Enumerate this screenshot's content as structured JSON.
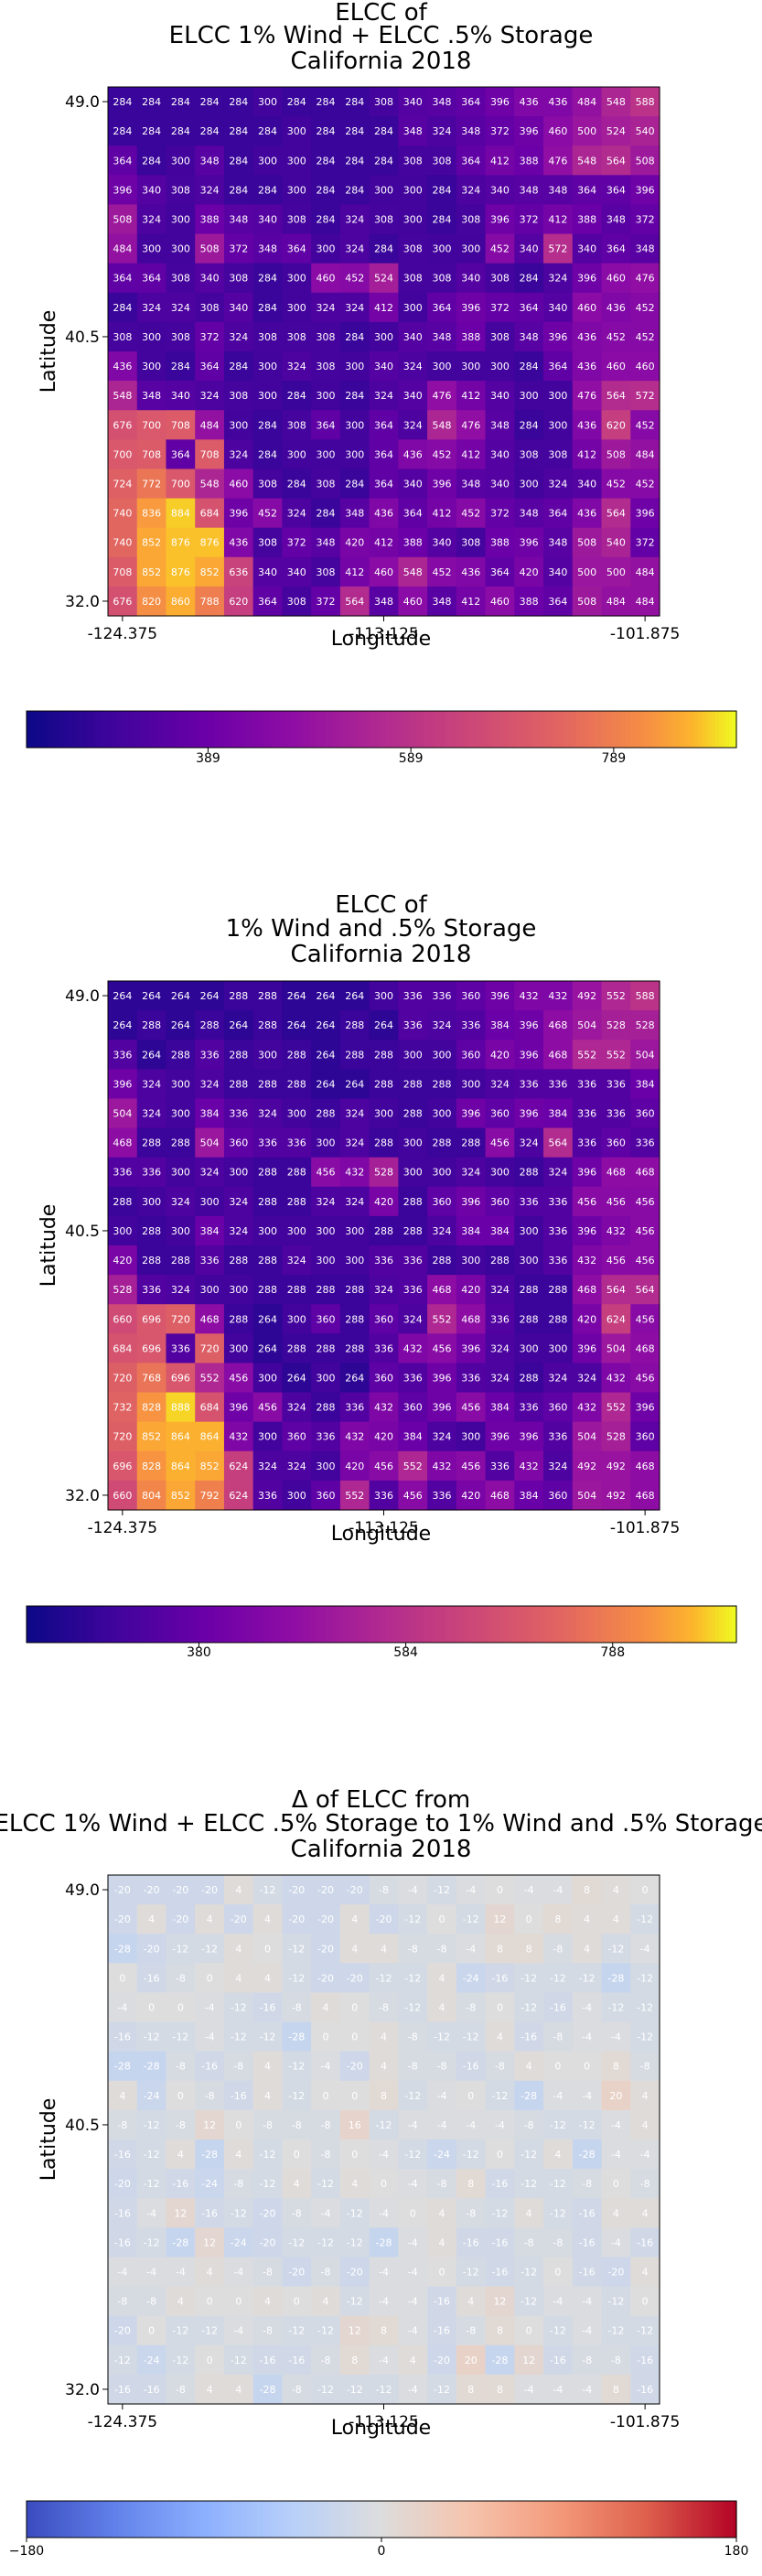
{
  "chart_data": [
    {
      "type": "heatmap",
      "title": [
        "ELCC of",
        "ELCC 1% Wind + ELCC .5% Storage",
        "California 2018"
      ],
      "xlabel": "Longitude",
      "ylabel": "Latitude",
      "xticks": [
        "-124.375",
        "-113.125",
        "-101.875"
      ],
      "yticks": [
        "49.0",
        "40.5",
        "32.0"
      ],
      "colormap": "plasma",
      "colorbar_ticks": [
        "389",
        "589",
        "789"
      ],
      "colorbar_range": [
        210,
        910
      ],
      "grid": [
        [
          284,
          284,
          284,
          284,
          284,
          300,
          284,
          284,
          284,
          308,
          340,
          348,
          364,
          396,
          436,
          436,
          484,
          548,
          588
        ],
        [
          284,
          284,
          284,
          284,
          284,
          284,
          300,
          284,
          284,
          284,
          348,
          324,
          348,
          372,
          396,
          460,
          500,
          524,
          540
        ],
        [
          364,
          284,
          300,
          348,
          284,
          300,
          300,
          284,
          284,
          284,
          308,
          308,
          364,
          412,
          388,
          476,
          548,
          564,
          508
        ],
        [
          396,
          340,
          308,
          324,
          284,
          284,
          300,
          284,
          284,
          300,
          300,
          284,
          324,
          340,
          348,
          348,
          364,
          364,
          396
        ],
        [
          508,
          324,
          300,
          388,
          348,
          340,
          308,
          284,
          324,
          308,
          300,
          284,
          308,
          396,
          372,
          412,
          388,
          348,
          372
        ],
        [
          484,
          300,
          300,
          508,
          372,
          348,
          364,
          300,
          324,
          284,
          308,
          300,
          300,
          452,
          340,
          572,
          340,
          364,
          348
        ],
        [
          364,
          364,
          308,
          340,
          308,
          284,
          300,
          460,
          452,
          524,
          308,
          308,
          340,
          308,
          284,
          324,
          396,
          460,
          476
        ],
        [
          284,
          324,
          324,
          308,
          340,
          284,
          300,
          324,
          324,
          412,
          300,
          364,
          396,
          372,
          364,
          340,
          460,
          436,
          452
        ],
        [
          308,
          300,
          308,
          372,
          324,
          308,
          308,
          308,
          284,
          300,
          340,
          348,
          388,
          308,
          348,
          396,
          436,
          452,
          452
        ],
        [
          436,
          300,
          284,
          364,
          284,
          300,
          324,
          308,
          300,
          340,
          324,
          300,
          300,
          300,
          284,
          364,
          436,
          460,
          460
        ],
        [
          548,
          348,
          340,
          324,
          308,
          300,
          284,
          300,
          284,
          324,
          340,
          476,
          412,
          340,
          300,
          300,
          476,
          564,
          572
        ],
        [
          676,
          700,
          708,
          484,
          300,
          284,
          308,
          364,
          300,
          364,
          324,
          548,
          476,
          348,
          284,
          300,
          436,
          620,
          452
        ],
        [
          700,
          708,
          364,
          708,
          324,
          284,
          300,
          300,
          300,
          364,
          436,
          452,
          412,
          340,
          308,
          308,
          412,
          508,
          484
        ],
        [
          724,
          772,
          700,
          548,
          460,
          308,
          284,
          308,
          284,
          364,
          340,
          396,
          348,
          340,
          300,
          324,
          340,
          452,
          452
        ],
        [
          740,
          836,
          884,
          684,
          396,
          452,
          324,
          284,
          348,
          436,
          364,
          412,
          452,
          372,
          348,
          364,
          436,
          564,
          396
        ],
        [
          740,
          852,
          876,
          876,
          436,
          308,
          372,
          348,
          420,
          412,
          388,
          340,
          308,
          388,
          396,
          348,
          508,
          540,
          372
        ],
        [
          708,
          852,
          876,
          852,
          636,
          340,
          340,
          308,
          412,
          460,
          548,
          452,
          436,
          364,
          420,
          340,
          500,
          500,
          484
        ],
        [
          676,
          820,
          860,
          788,
          620,
          364,
          308,
          372,
          564,
          348,
          460,
          348,
          412,
          460,
          388,
          364,
          508,
          484,
          484
        ]
      ]
    },
    {
      "type": "heatmap",
      "title": [
        "ELCC of",
        "1% Wind and .5% Storage",
        "California 2018"
      ],
      "xlabel": "Longitude",
      "ylabel": "Latitude",
      "xticks": [
        "-124.375",
        "-113.125",
        "-101.875"
      ],
      "yticks": [
        "49.0",
        "40.5",
        "32.0"
      ],
      "colormap": "plasma",
      "colorbar_ticks": [
        "380",
        "584",
        "788"
      ],
      "colorbar_range": [
        210,
        910
      ],
      "grid": [
        [
          264,
          264,
          264,
          264,
          288,
          288,
          264,
          264,
          264,
          300,
          336,
          336,
          360,
          396,
          432,
          432,
          492,
          552,
          588
        ],
        [
          264,
          288,
          264,
          288,
          264,
          288,
          264,
          264,
          288,
          264,
          336,
          324,
          336,
          384,
          396,
          468,
          504,
          528,
          528
        ],
        [
          336,
          264,
          288,
          336,
          288,
          300,
          288,
          264,
          288,
          288,
          300,
          300,
          360,
          420,
          396,
          468,
          552,
          552,
          504
        ],
        [
          396,
          324,
          300,
          324,
          288,
          288,
          288,
          264,
          264,
          288,
          288,
          288,
          300,
          324,
          336,
          336,
          336,
          336,
          384
        ],
        [
          504,
          324,
          300,
          384,
          336,
          324,
          300,
          288,
          324,
          300,
          288,
          300,
          396,
          360,
          396,
          384,
          336,
          336,
          360
        ],
        [
          468,
          288,
          288,
          504,
          360,
          336,
          336,
          300,
          324,
          288,
          300,
          288,
          288,
          456,
          324,
          564,
          336,
          360,
          336
        ],
        [
          336,
          336,
          300,
          324,
          300,
          288,
          288,
          456,
          432,
          528,
          300,
          300,
          324,
          300,
          288,
          324,
          396,
          468,
          468
        ],
        [
          288,
          300,
          324,
          300,
          324,
          288,
          288,
          324,
          324,
          420,
          288,
          360,
          396,
          360,
          336,
          336,
          456,
          456,
          456
        ],
        [
          300,
          288,
          300,
          384,
          324,
          300,
          300,
          300,
          300,
          288,
          288,
          324,
          384,
          384,
          300,
          336,
          396,
          432,
          456
        ],
        [
          420,
          288,
          288,
          336,
          288,
          288,
          324,
          300,
          300,
          336,
          336,
          288,
          300,
          288,
          300,
          336,
          432,
          456,
          456
        ],
        [
          528,
          336,
          324,
          300,
          300,
          288,
          288,
          288,
          288,
          324,
          336,
          468,
          420,
          324,
          288,
          288,
          468,
          564,
          564
        ],
        [
          660,
          696,
          720,
          468,
          288,
          264,
          300,
          360,
          288,
          360,
          324,
          552,
          468,
          336,
          288,
          288,
          420,
          624,
          456
        ],
        [
          684,
          696,
          336,
          720,
          300,
          264,
          288,
          288,
          288,
          336,
          432,
          456,
          396,
          324,
          300,
          300,
          396,
          504,
          468
        ],
        [
          720,
          768,
          696,
          552,
          456,
          300,
          264,
          300,
          264,
          360,
          336,
          396,
          336,
          324,
          288,
          324,
          324,
          432,
          456
        ],
        [
          732,
          828,
          888,
          684,
          396,
          456,
          324,
          288,
          336,
          432,
          360,
          396,
          456,
          384,
          336,
          360,
          432,
          552,
          396
        ],
        [
          720,
          852,
          864,
          864,
          432,
          300,
          360,
          336,
          432,
          420,
          384,
          324,
          300,
          396,
          396,
          336,
          504,
          528,
          360
        ],
        [
          696,
          828,
          864,
          852,
          624,
          324,
          324,
          300,
          420,
          456,
          552,
          432,
          456,
          336,
          432,
          324,
          492,
          492,
          468
        ],
        [
          660,
          804,
          852,
          792,
          624,
          336,
          300,
          360,
          552,
          336,
          456,
          336,
          420,
          468,
          384,
          360,
          504,
          492,
          468
        ]
      ]
    },
    {
      "type": "heatmap",
      "title": [
        "Δ of ELCC from",
        "ELCC 1% Wind + ELCC .5% Storage to 1% Wind and .5% Storage",
        "California 2018"
      ],
      "xlabel": "Longitude",
      "ylabel": "Latitude",
      "xticks": [
        "-124.375",
        "-113.125",
        "-101.875"
      ],
      "yticks": [
        "49.0",
        "40.5",
        "32.0"
      ],
      "colormap": "coolwarm",
      "colorbar_ticks": [
        "−180",
        "0",
        "180"
      ],
      "colorbar_range": [
        -180,
        180
      ],
      "grid": [
        [
          -20,
          -20,
          -20,
          -20,
          4,
          -12,
          -20,
          -20,
          -20,
          -8,
          -4,
          -12,
          -4,
          0,
          -4,
          -4,
          8,
          4,
          0
        ],
        [
          -20,
          4,
          -20,
          4,
          -20,
          4,
          -20,
          -20,
          4,
          -20,
          -12,
          0,
          -12,
          12,
          0,
          8,
          4,
          4,
          -12
        ],
        [
          -28,
          -20,
          -12,
          -12,
          4,
          0,
          -12,
          -20,
          4,
          4,
          -8,
          -8,
          -4,
          8,
          8,
          -8,
          4,
          -12,
          -4
        ],
        [
          0,
          -16,
          -8,
          0,
          4,
          4,
          -12,
          -20,
          -20,
          -12,
          -12,
          4,
          -24,
          -16,
          -12,
          -12,
          -12,
          -28,
          -12
        ],
        [
          -4,
          0,
          0,
          -4,
          -12,
          -16,
          -8,
          4,
          0,
          -8,
          -12,
          4,
          -8,
          0,
          -12,
          -16,
          -4,
          -12,
          -12
        ],
        [
          -16,
          -12,
          -12,
          -4,
          -12,
          -12,
          -28,
          0,
          0,
          4,
          -8,
          -12,
          -12,
          4,
          -16,
          -8,
          -4,
          -4,
          -12
        ],
        [
          -28,
          -28,
          -8,
          -16,
          -8,
          4,
          -12,
          -4,
          -20,
          4,
          -8,
          -8,
          -16,
          -8,
          4,
          0,
          0,
          8,
          -8
        ],
        [
          4,
          -24,
          0,
          -8,
          -16,
          4,
          -12,
          0,
          0,
          8,
          -12,
          -4,
          0,
          -12,
          -28,
          -4,
          -4,
          20,
          4
        ],
        [
          -8,
          -12,
          -8,
          12,
          0,
          -8,
          -8,
          -8,
          16,
          -12,
          -4,
          -4,
          -4,
          -4,
          -8,
          -12,
          -12,
          -4,
          4
        ],
        [
          -16,
          -12,
          4,
          -28,
          4,
          -12,
          0,
          -8,
          0,
          -4,
          -12,
          -24,
          -12,
          0,
          -12,
          4,
          -28,
          -4,
          -4
        ],
        [
          -20,
          -12,
          -16,
          -24,
          -8,
          -12,
          4,
          -12,
          4,
          0,
          -4,
          -8,
          8,
          -16,
          -12,
          -12,
          -8,
          0,
          -8
        ],
        [
          -16,
          -4,
          12,
          -16,
          -12,
          -20,
          -8,
          -4,
          -12,
          -4,
          0,
          4,
          -8,
          -12,
          4,
          -12,
          -16,
          4,
          4
        ],
        [
          -16,
          -12,
          -28,
          12,
          -24,
          -20,
          -12,
          -12,
          -12,
          -28,
          -4,
          4,
          -16,
          -16,
          -8,
          -8,
          -16,
          -4,
          -16
        ],
        [
          -4,
          -4,
          -4,
          4,
          -4,
          -8,
          -20,
          -8,
          -20,
          -4,
          -4,
          0,
          -12,
          -16,
          -12,
          0,
          -16,
          -20,
          4
        ],
        [
          -8,
          -8,
          4,
          0,
          0,
          4,
          0,
          4,
          -12,
          -4,
          -4,
          -16,
          4,
          12,
          -12,
          -4,
          -4,
          -12,
          0
        ],
        [
          -20,
          0,
          -12,
          -12,
          -4,
          -8,
          -12,
          -12,
          12,
          8,
          -4,
          -16,
          -8,
          8,
          0,
          -12,
          -4,
          -12,
          -12
        ],
        [
          -12,
          -24,
          -12,
          0,
          -12,
          -16,
          -16,
          -8,
          8,
          -4,
          4,
          -20,
          20,
          -28,
          12,
          -16,
          -8,
          -8,
          -16
        ],
        [
          -16,
          -16,
          -8,
          4,
          4,
          -28,
          -8,
          -12,
          -12,
          -12,
          -4,
          -12,
          8,
          8,
          -4,
          -4,
          -4,
          8,
          -16
        ]
      ]
    }
  ]
}
